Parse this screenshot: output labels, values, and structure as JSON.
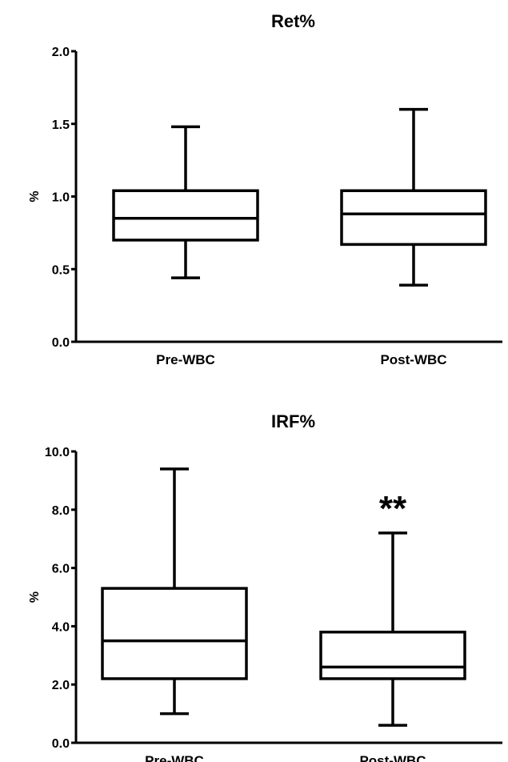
{
  "chart_data": [
    {
      "type": "box",
      "title": "Ret%",
      "ylabel": "%",
      "ylim": [
        0,
        2.0
      ],
      "yticks": [
        "0.0",
        "0.5",
        "1.0",
        "1.5",
        "2.0"
      ],
      "categories": [
        "Pre-WBC",
        "Post-WBC"
      ],
      "boxes": [
        {
          "category": "Pre-WBC",
          "min": 0.44,
          "q1": 0.7,
          "median": 0.85,
          "q3": 1.04,
          "max": 1.48
        },
        {
          "category": "Post-WBC",
          "min": 0.39,
          "q1": 0.67,
          "median": 0.88,
          "q3": 1.04,
          "max": 1.6
        }
      ],
      "annotations": []
    },
    {
      "type": "box",
      "title": "IRF%",
      "ylabel": "%",
      "ylim": [
        0,
        10.0
      ],
      "yticks": [
        "0.0",
        "2.0",
        "4.0",
        "6.0",
        "8.0",
        "10.0"
      ],
      "categories": [
        "Pre-WBC",
        "Post-WBC"
      ],
      "boxes": [
        {
          "category": "Pre-WBC",
          "min": 1.0,
          "q1": 2.2,
          "median": 3.5,
          "q3": 5.3,
          "max": 9.4
        },
        {
          "category": "Post-WBC",
          "min": 0.6,
          "q1": 2.2,
          "median": 2.6,
          "q3": 3.8,
          "max": 7.2
        }
      ],
      "annotations": [
        {
          "text": "**",
          "category": "Post-WBC",
          "y": 8.4
        }
      ]
    }
  ]
}
